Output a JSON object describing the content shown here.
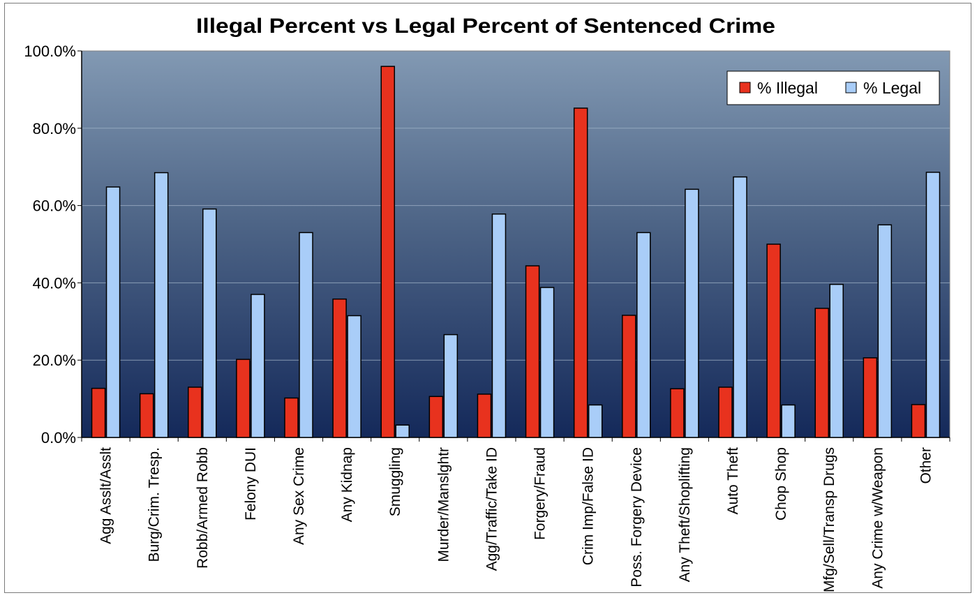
{
  "chart_data": {
    "type": "bar",
    "title": "Illegal Percent vs Legal Percent of Sentenced Crime",
    "xlabel": "",
    "ylabel": "",
    "ylim": [
      0,
      100
    ],
    "yticks": [
      "0.0%",
      "20.0%",
      "40.0%",
      "60.0%",
      "80.0%",
      "100.0%"
    ],
    "ytick_values": [
      0,
      20,
      40,
      60,
      80,
      100
    ],
    "grid": true,
    "legend_position": "top-right",
    "categories": [
      "Agg Asslt/Asslt",
      "Burg/Crim. Tresp.",
      "Robb/Armed Robb",
      "Felony DUI",
      "Any Sex Crime",
      "Any Kidnap",
      "Smuggling",
      "Murder/Manslghtr",
      "Agg/Traffic/Take ID",
      "Forgery/Fraud",
      "Crim Imp/False ID",
      "Poss. Forgery Device",
      "Any Theft/Shoplifting",
      "Auto Theft",
      "Chop Shop",
      "Mfg/Sell/Transp Drugs",
      "Any Crime w/Weapon",
      "Other"
    ],
    "series": [
      {
        "name": "% Illegal",
        "color": "#e8321e",
        "values": [
          12.7,
          11.3,
          13.0,
          20.2,
          10.2,
          35.8,
          96.0,
          10.6,
          11.2,
          44.4,
          85.2,
          31.6,
          12.6,
          13.0,
          50.0,
          33.4,
          20.6,
          8.5
        ]
      },
      {
        "name": "% Legal",
        "color": "#a9cdf8",
        "values": [
          64.8,
          68.5,
          59.1,
          37.0,
          53.0,
          31.5,
          3.2,
          26.6,
          57.8,
          38.8,
          8.4,
          53.0,
          64.2,
          67.4,
          8.4,
          39.6,
          55.0,
          68.6
        ]
      }
    ]
  }
}
